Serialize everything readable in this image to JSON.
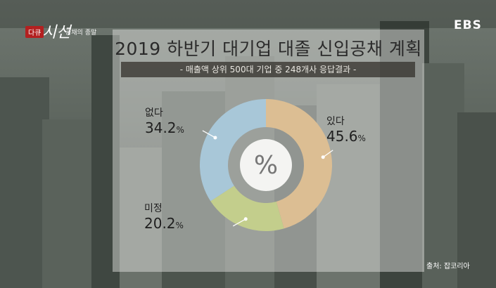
{
  "broadcast": {
    "program_tag": "다큐",
    "program_name": "시선",
    "episode_title": "공채의 종말",
    "channel": "EBS",
    "source": "출처: 잡코리아"
  },
  "colors": {
    "있다": "#dcbe93",
    "미정": "#c3ce8c",
    "없다": "#a8c7d8"
  },
  "chart_data": {
    "type": "pie",
    "title": "2019 하반기 대기업 대졸 신입공채 계획",
    "subtitle": "- 매출액 상위 500대 기업 중 248개사 응답결과 -",
    "center_label": "%",
    "slices": [
      {
        "label": "있다",
        "value": 45.6,
        "display": "45.6",
        "unit": "%"
      },
      {
        "label": "미정",
        "value": 20.2,
        "display": "20.2",
        "unit": "%"
      },
      {
        "label": "없다",
        "value": 34.2,
        "display": "34.2",
        "unit": "%"
      }
    ]
  }
}
